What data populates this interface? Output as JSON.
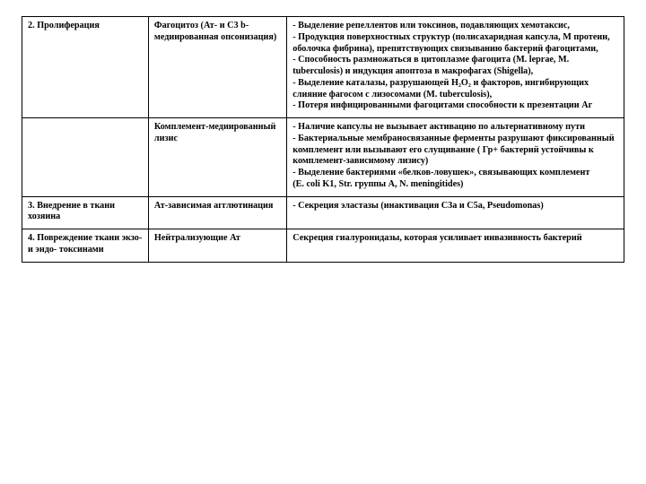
{
  "table": {
    "rows": [
      {
        "c1": "2. Пролиферация",
        "c2": "Фагоцитоз (Ат- и С3 b-медиированная опсонизация)",
        "c3": "- Выделение репеллентов или токсинов, подавляющих хемотаксис,\n- Продукция поверхностных структур (полисахаридная капсула, М протеин, оболочка фибрина), препятствующих связыванию бактерий фагоцитами,\n- Способность размножаться в цитоплазме фагоцита (M. leprae, M. tuberculosis) и индукция апоптоза в макрофагах (Shigella),\n- Выделение каталазы, разрушающей Н₂О₂ и факторов, ингибирующих слияние фагосом с лизосомами (M. tuberculosis),\n- Потеря инфицированными фагоцитами способности к презентации Аг"
      },
      {
        "c1": "",
        "c2": "Комплемент-медиированный лизис",
        "c3": "- Наличие капсулы не вызывает активацию по альтернативному пути\n- Бактериальные мембраносвязанные ферменты разрушают фиксированный комплемент или вызывают его слущивание ( Гр+ бактерий устойчивы к комплемент-зависимому лизису)\n- Выделение бактериями «белков-ловушек», связывающих комплемент\n(E. coli K1, Str. группы А, N. meningitides)"
      },
      {
        "c1": "3. Внедрение в ткани хозяина",
        "c2": "Ат-зависимая агглютинация",
        "c3": "- Секреция эластазы (инактивация С3а и С5а, Pseudomonas)"
      },
      {
        "c1": "4. Повреждение ткани экзо- и эндо- токсинами",
        "c2": "Нейтрализующие Ат",
        "c3": "Секреция гиалуронидазы, которая усиливает инвазивность бактерий"
      }
    ]
  }
}
